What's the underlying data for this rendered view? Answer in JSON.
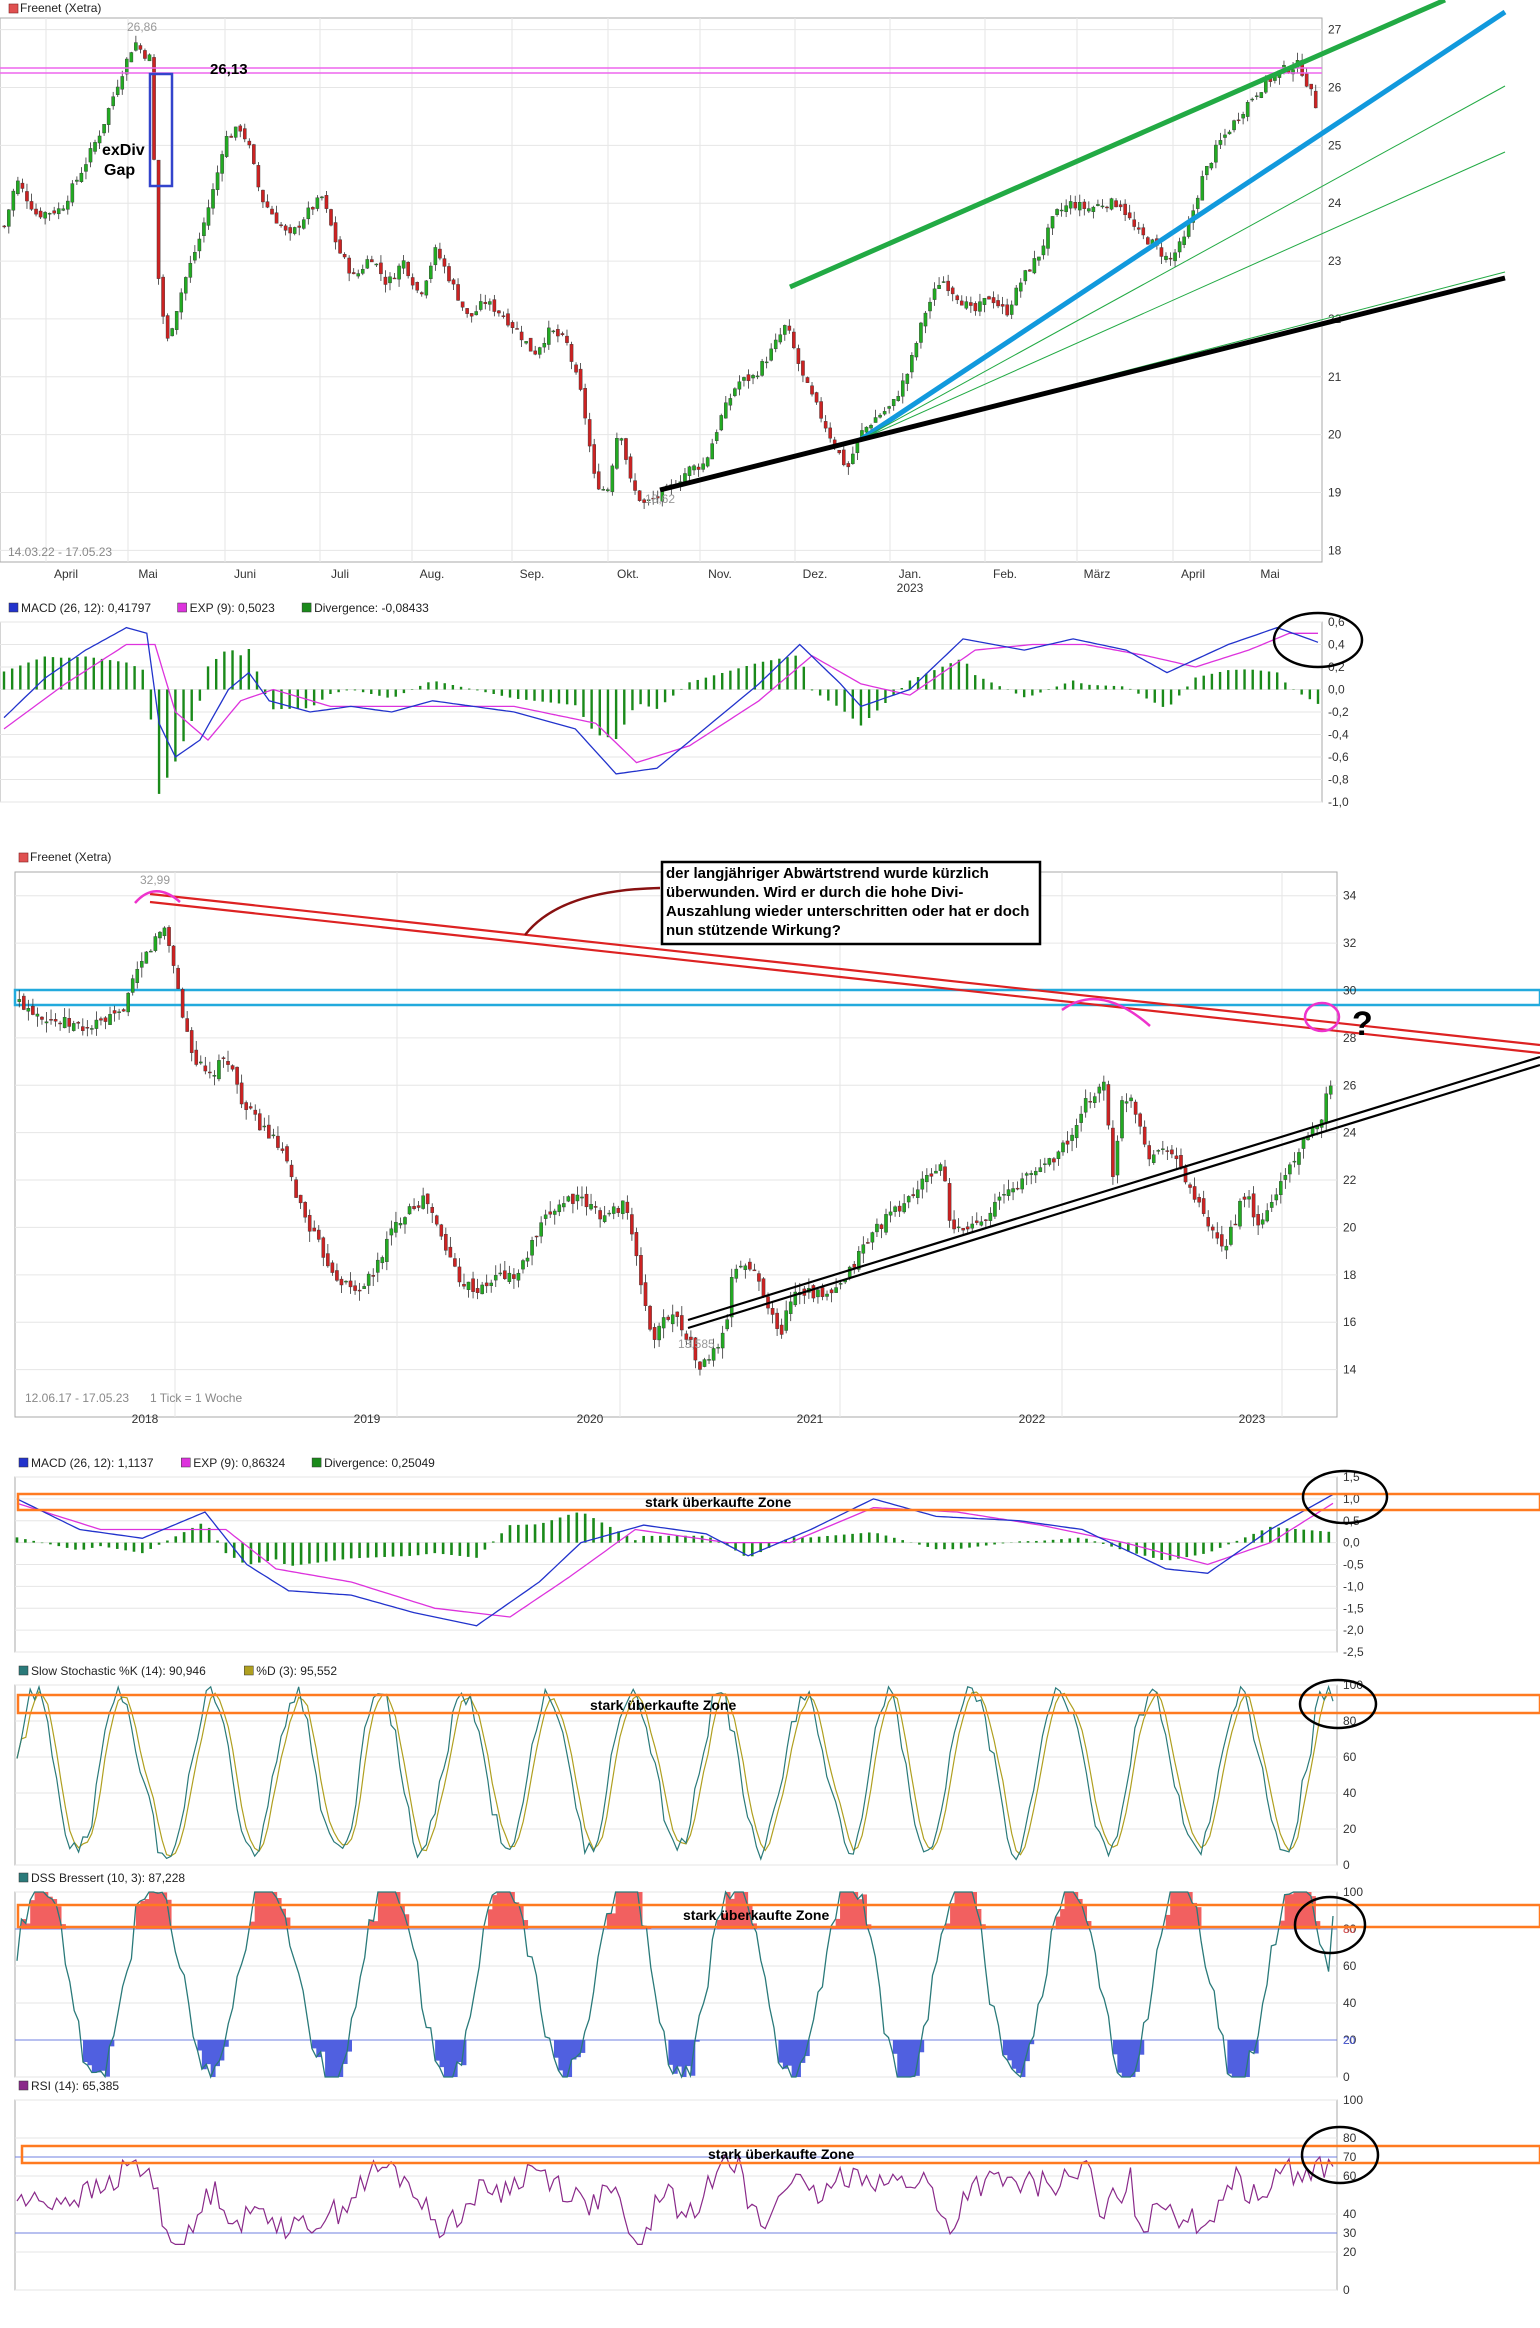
{
  "chart_data": [
    {
      "type": "candlestick",
      "title": "Freenet (Xetra)",
      "daterange": "14.03.22 - 17.05.23",
      "months": [
        {
          "label": "April"
        },
        {
          "label": "Mai"
        },
        {
          "label": "Juni"
        },
        {
          "label": "Juli"
        },
        {
          "label": "Aug."
        },
        {
          "label": "Sep."
        },
        {
          "label": "Okt."
        },
        {
          "label": "Nov."
        },
        {
          "label": "Dez."
        },
        {
          "label": "Jan.",
          "sub": "2023"
        },
        {
          "label": "Feb."
        },
        {
          "label": "März"
        },
        {
          "label": "April"
        },
        {
          "label": "Mai"
        }
      ],
      "yticks": [
        "18",
        "19",
        "20",
        "21",
        "22",
        "23",
        "24",
        "25",
        "26",
        "27"
      ],
      "ylim": [
        17.8,
        27.2
      ],
      "high_label": "26,86",
      "low_label": "18,62",
      "price_label": "26,13",
      "annotations": [
        "exDiv",
        "Gap"
      ],
      "path": [
        [
          0,
          23.6
        ],
        [
          3,
          24.4
        ],
        [
          8,
          23.8
        ],
        [
          14,
          23.9
        ],
        [
          20,
          24.7
        ],
        [
          24,
          25.3
        ],
        [
          28,
          26.1
        ],
        [
          32,
          26.8
        ],
        [
          34,
          26.6
        ],
        [
          36,
          26.5
        ],
        [
          37,
          24.2
        ],
        [
          38,
          22.5
        ],
        [
          40,
          21.6
        ],
        [
          44,
          22.6
        ],
        [
          48,
          23.4
        ],
        [
          52,
          24.4
        ],
        [
          54,
          25.1
        ],
        [
          58,
          25.3
        ],
        [
          60,
          25.0
        ],
        [
          63,
          24.1
        ],
        [
          66,
          23.8
        ],
        [
          70,
          23.4
        ],
        [
          74,
          23.8
        ],
        [
          78,
          24.1
        ],
        [
          82,
          23.2
        ],
        [
          86,
          22.7
        ],
        [
          90,
          23.1
        ],
        [
          94,
          22.6
        ],
        [
          98,
          23.0
        ],
        [
          102,
          22.4
        ],
        [
          106,
          23.2
        ],
        [
          110,
          22.6
        ],
        [
          114,
          22.0
        ],
        [
          118,
          22.3
        ],
        [
          122,
          22.1
        ],
        [
          126,
          21.8
        ],
        [
          130,
          21.4
        ],
        [
          134,
          21.8
        ],
        [
          138,
          21.6
        ],
        [
          142,
          20.6
        ],
        [
          145,
          19.2
        ],
        [
          148,
          19.0
        ],
        [
          151,
          20.2
        ],
        [
          154,
          19.1
        ],
        [
          157,
          18.8
        ],
        [
          160,
          18.9
        ],
        [
          164,
          19.1
        ],
        [
          168,
          19.4
        ],
        [
          172,
          19.5
        ],
        [
          176,
          20.3
        ],
        [
          180,
          20.9
        ],
        [
          184,
          21.0
        ],
        [
          188,
          21.4
        ],
        [
          192,
          21.9
        ],
        [
          196,
          21.0
        ],
        [
          200,
          20.4
        ],
        [
          204,
          19.8
        ],
        [
          207,
          19.4
        ],
        [
          210,
          20.0
        ],
        [
          214,
          20.3
        ],
        [
          218,
          20.5
        ],
        [
          222,
          21.1
        ],
        [
          226,
          22.1
        ],
        [
          230,
          22.7
        ],
        [
          234,
          22.4
        ],
        [
          238,
          22.1
        ],
        [
          242,
          22.4
        ],
        [
          246,
          22.1
        ],
        [
          250,
          22.7
        ],
        [
          254,
          23.1
        ],
        [
          258,
          23.8
        ],
        [
          262,
          24.0
        ],
        [
          266,
          23.9
        ],
        [
          270,
          24.0
        ],
        [
          274,
          24.0
        ],
        [
          278,
          23.5
        ],
        [
          282,
          23.3
        ],
        [
          286,
          23.0
        ],
        [
          290,
          23.4
        ],
        [
          294,
          24.4
        ],
        [
          298,
          25.0
        ],
        [
          302,
          25.4
        ],
        [
          306,
          25.8
        ],
        [
          310,
          26.1
        ],
        [
          314,
          26.3
        ],
        [
          318,
          26.4
        ],
        [
          322,
          25.7
        ]
      ]
    },
    {
      "type": "line",
      "title": "MACD (26, 12): 0,41797",
      "legend": [
        "MACD (26, 12): 0,41797",
        "EXP (9): 0,5023",
        "Divergence: -0,08433"
      ],
      "yticks": [
        "0,6",
        "0,4",
        "0,2",
        "0,0",
        "-0,2",
        "-0,4",
        "-0,6",
        "-0,8",
        "-1,0"
      ],
      "ylim": [
        -1.0,
        0.6
      ],
      "macd": [
        [
          0,
          -0.25
        ],
        [
          10,
          0.1
        ],
        [
          20,
          0.35
        ],
        [
          30,
          0.55
        ],
        [
          35,
          0.5
        ],
        [
          38,
          -0.3
        ],
        [
          42,
          -0.6
        ],
        [
          48,
          -0.45
        ],
        [
          55,
          0.0
        ],
        [
          60,
          0.15
        ],
        [
          65,
          -0.1
        ],
        [
          75,
          -0.2
        ],
        [
          85,
          -0.15
        ],
        [
          95,
          -0.2
        ],
        [
          105,
          -0.1
        ],
        [
          115,
          -0.15
        ],
        [
          125,
          -0.2
        ],
        [
          140,
          -0.35
        ],
        [
          150,
          -0.75
        ],
        [
          160,
          -0.7
        ],
        [
          170,
          -0.4
        ],
        [
          185,
          0.05
        ],
        [
          195,
          0.4
        ],
        [
          205,
          0.05
        ],
        [
          210,
          -0.15
        ],
        [
          222,
          0.0
        ],
        [
          235,
          0.45
        ],
        [
          250,
          0.35
        ],
        [
          262,
          0.45
        ],
        [
          275,
          0.35
        ],
        [
          285,
          0.15
        ],
        [
          300,
          0.4
        ],
        [
          312,
          0.55
        ],
        [
          322,
          0.42
        ]
      ],
      "signal": [
        [
          0,
          -0.35
        ],
        [
          15,
          0.05
        ],
        [
          30,
          0.4
        ],
        [
          37,
          0.4
        ],
        [
          42,
          -0.2
        ],
        [
          50,
          -0.45
        ],
        [
          58,
          -0.1
        ],
        [
          66,
          0.0
        ],
        [
          80,
          -0.15
        ],
        [
          100,
          -0.15
        ],
        [
          125,
          -0.15
        ],
        [
          145,
          -0.3
        ],
        [
          155,
          -0.65
        ],
        [
          168,
          -0.5
        ],
        [
          185,
          -0.1
        ],
        [
          198,
          0.3
        ],
        [
          210,
          0.05
        ],
        [
          222,
          -0.05
        ],
        [
          238,
          0.35
        ],
        [
          252,
          0.4
        ],
        [
          265,
          0.4
        ],
        [
          280,
          0.3
        ],
        [
          292,
          0.2
        ],
        [
          305,
          0.35
        ],
        [
          315,
          0.5
        ],
        [
          322,
          0.5
        ]
      ]
    },
    {
      "type": "candlestick",
      "title": "Freenet (Xetra)",
      "daterange": "12.06.17 - 17.05.23",
      "note": "1 Tick = 1 Woche",
      "years": [
        "2018",
        "2019",
        "2020",
        "2021",
        "2022",
        "2023"
      ],
      "yticks": [
        "14",
        "16",
        "18",
        "20",
        "22",
        "24",
        "26",
        "28",
        "30",
        "32",
        "34"
      ],
      "ylim": [
        12.0,
        35.0
      ],
      "high_label": "32,99",
      "low_label": "13,585",
      "callout": "der langjähriger Abwärtstrend wurde kürzlich überwunden. Wird er durch die hohe Divi-Auszahlung wieder unterschritten oder hat er doch nun stützende Wirkung?",
      "question": "?",
      "path": [
        [
          0,
          29.5
        ],
        [
          8,
          28.7
        ],
        [
          15,
          28.4
        ],
        [
          22,
          28.9
        ],
        [
          28,
          31.5
        ],
        [
          32,
          32.7
        ],
        [
          34,
          31.3
        ],
        [
          36,
          29.0
        ],
        [
          39,
          27.0
        ],
        [
          42,
          26.3
        ],
        [
          46,
          27.2
        ],
        [
          50,
          25.0
        ],
        [
          54,
          24.2
        ],
        [
          58,
          23.2
        ],
        [
          62,
          21.0
        ],
        [
          66,
          19.3
        ],
        [
          70,
          18.0
        ],
        [
          74,
          17.3
        ],
        [
          78,
          17.9
        ],
        [
          82,
          19.7
        ],
        [
          86,
          20.9
        ],
        [
          90,
          21.2
        ],
        [
          94,
          19.2
        ],
        [
          98,
          17.7
        ],
        [
          102,
          17.3
        ],
        [
          106,
          18.0
        ],
        [
          110,
          17.9
        ],
        [
          114,
          19.5
        ],
        [
          118,
          20.8
        ],
        [
          122,
          21.3
        ],
        [
          126,
          20.9
        ],
        [
          130,
          20.4
        ],
        [
          134,
          21.2
        ],
        [
          136,
          19.0
        ],
        [
          138,
          17.2
        ],
        [
          140,
          15.2
        ],
        [
          144,
          16.5
        ],
        [
          148,
          15.4
        ],
        [
          150,
          14.1
        ],
        [
          152,
          14.3
        ],
        [
          156,
          15.5
        ],
        [
          158,
          18.3
        ],
        [
          160,
          18.5
        ],
        [
          163,
          18.0
        ],
        [
          166,
          16.6
        ],
        [
          168,
          15.3
        ],
        [
          171,
          17.3
        ],
        [
          174,
          17.4
        ],
        [
          178,
          17.0
        ],
        [
          182,
          17.5
        ],
        [
          186,
          19.0
        ],
        [
          190,
          20.1
        ],
        [
          194,
          20.7
        ],
        [
          198,
          21.5
        ],
        [
          202,
          22.3
        ],
        [
          204,
          22.8
        ],
        [
          206,
          19.8
        ],
        [
          210,
          20.0
        ],
        [
          214,
          20.6
        ],
        [
          218,
          21.4
        ],
        [
          222,
          22.0
        ],
        [
          226,
          22.6
        ],
        [
          230,
          23.2
        ],
        [
          234,
          24.2
        ],
        [
          236,
          25.3
        ],
        [
          240,
          26.1
        ],
        [
          242,
          22.0
        ],
        [
          244,
          25.5
        ],
        [
          246,
          25.5
        ],
        [
          250,
          23.0
        ],
        [
          254,
          23.5
        ],
        [
          258,
          22.0
        ],
        [
          262,
          20.4
        ],
        [
          264,
          19.6
        ],
        [
          266,
          19.0
        ],
        [
          270,
          20.9
        ],
        [
          272,
          21.2
        ],
        [
          274,
          19.9
        ],
        [
          278,
          21.5
        ],
        [
          282,
          23.0
        ],
        [
          286,
          24.0
        ],
        [
          288,
          24.8
        ],
        [
          290,
          26.2
        ]
      ]
    },
    {
      "type": "line",
      "title": "MACD (26, 12): 1,1137",
      "legend": [
        "MACD (26, 12): 1,1137",
        "EXP (9): 0,86324",
        "Divergence: 0,25049"
      ],
      "yticks": [
        "1,5",
        "1,0",
        "0,5",
        "0,0",
        "-0,5",
        "-1,0",
        "-1,5",
        "-2,0",
        "-2,5"
      ],
      "ylim": [
        -2.5,
        1.5
      ],
      "zone_label": "stark überkaufte Zone"
    },
    {
      "type": "line",
      "title": "Slow Stochastic %K (14): 90,946",
      "legend": [
        "Slow Stochastic %K (14): 90,946",
        "%D (3): 95,552"
      ],
      "yticks": [
        "0",
        "20",
        "40",
        "60",
        "80",
        "100"
      ],
      "ylim": [
        0,
        100
      ],
      "zone_label": "stark überkaufte Zone"
    },
    {
      "type": "area",
      "title": "DSS Bressert (10, 3): 87,228",
      "legend": [
        "DSS Bressert (10, 3): 87,228"
      ],
      "yticks": [
        "0",
        "20",
        "40",
        "60",
        "80",
        "100"
      ],
      "ylim": [
        0,
        100
      ],
      "levels": [
        20,
        80
      ],
      "zone_label": "stark überkaufte Zone"
    },
    {
      "type": "line",
      "title": "RSI (14): 65,385",
      "legend": [
        "RSI (14): 65,385"
      ],
      "yticks": [
        "0",
        "20",
        "30",
        "40",
        "60",
        "70",
        "80",
        "100"
      ],
      "ylim": [
        0,
        100
      ],
      "levels": [
        30,
        70
      ],
      "zone_label": "stark überkaufte Zone"
    }
  ],
  "colors": {
    "up": "#22aa22",
    "down": "#cc2222",
    "macd": "#2233cc",
    "signal": "#dd33dd",
    "divergence": "#1a8a1a",
    "stoch_k": "#2a7a7a",
    "stoch_d": "#b0a020",
    "dss": "#2a7a7a",
    "dss_fill_high": "#f26060",
    "dss_fill_low": "#5060e0",
    "rsi": "#8a2a8a",
    "zone": "#ff7a20",
    "trend_green": "#22aa44",
    "trend_blue": "#1199dd",
    "trend_black": "#000000",
    "trend_red": "#dd2222",
    "resistance_blue": "#22aadd",
    "grid": "#e6e6e6"
  }
}
